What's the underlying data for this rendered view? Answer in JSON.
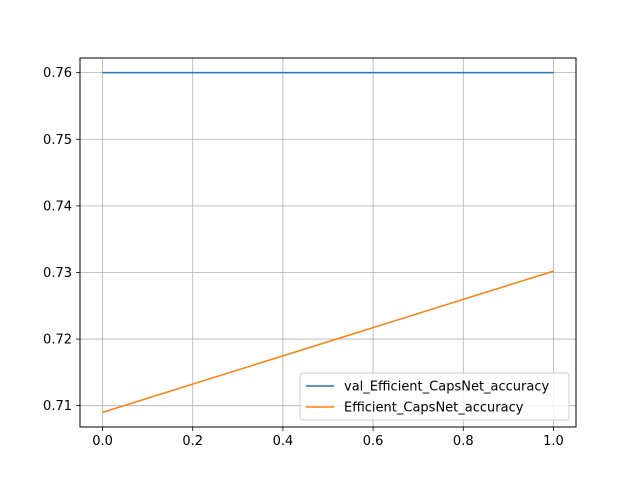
{
  "chart_data": {
    "type": "line",
    "title": "",
    "xlabel": "",
    "ylabel": "",
    "x": [
      0,
      1
    ],
    "xlim": [
      -0.05,
      1.05
    ],
    "ylim": [
      0.7068,
      0.7622
    ],
    "xticks": [
      0.0,
      0.2,
      0.4,
      0.6,
      0.8,
      1.0
    ],
    "xtick_labels": [
      "0.0",
      "0.2",
      "0.4",
      "0.6",
      "0.8",
      "1.0"
    ],
    "yticks": [
      0.71,
      0.72,
      0.73,
      0.74,
      0.75,
      0.76
    ],
    "ytick_labels": [
      "0.71",
      "0.72",
      "0.73",
      "0.74",
      "0.75",
      "0.76"
    ],
    "grid": true,
    "legend_position": "lower-right",
    "series": [
      {
        "name": "val_Efficient_CapsNet_accuracy",
        "values": [
          0.76,
          0.76
        ],
        "color": "#1f77b4"
      },
      {
        "name": "Efficient_CapsNet_accuracy",
        "values": [
          0.709,
          0.7302
        ],
        "color": "#ff7f0e"
      }
    ]
  }
}
